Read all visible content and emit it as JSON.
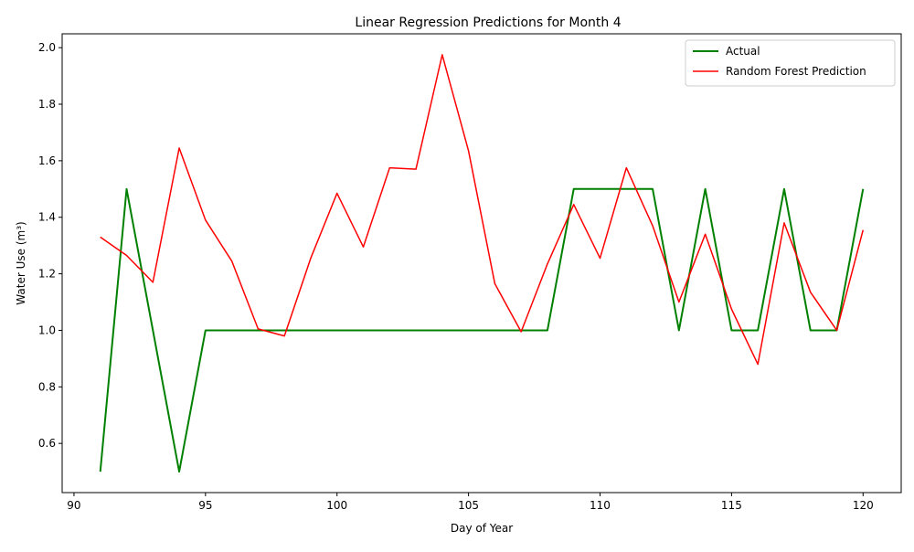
{
  "chart_data": {
    "type": "line",
    "title": "Linear Regression Predictions for Month 4",
    "xlabel": "Day of Year",
    "ylabel": "Water Use (m³)",
    "xlim": [
      89.55,
      121.45
    ],
    "ylim": [
      0.426,
      2.049
    ],
    "x_ticks": [
      90,
      95,
      100,
      105,
      110,
      115,
      120
    ],
    "y_ticks": [
      0.6,
      0.8,
      1.0,
      1.2,
      1.4,
      1.6,
      1.8,
      2.0
    ],
    "x_tick_labels": [
      "90",
      "95",
      "100",
      "105",
      "110",
      "115",
      "120"
    ],
    "y_tick_labels": [
      "0.6",
      "0.8",
      "1.0",
      "1.2",
      "1.4",
      "1.6",
      "1.8",
      "2.0"
    ],
    "legend_position": "top-right",
    "x": [
      91,
      92,
      93,
      94,
      95,
      96,
      97,
      98,
      99,
      100,
      101,
      102,
      103,
      104,
      105,
      106,
      107,
      108,
      109,
      110,
      111,
      112,
      113,
      114,
      115,
      116,
      117,
      118,
      119,
      120
    ],
    "series": [
      {
        "name": "Actual",
        "color": "#008000",
        "values": [
          0.5,
          1.5,
          1.0,
          0.5,
          1.0,
          1.0,
          1.0,
          1.0,
          1.0,
          1.0,
          1.0,
          1.0,
          1.0,
          1.0,
          1.0,
          1.0,
          1.0,
          1.0,
          1.5,
          1.5,
          1.5,
          1.5,
          1.0,
          1.5,
          1.0,
          1.0,
          1.5,
          1.0,
          1.0,
          1.5
        ]
      },
      {
        "name": "Random Forest Prediction",
        "color": "#ff0000",
        "values": [
          1.33,
          1.265,
          1.17,
          1.645,
          1.39,
          1.245,
          1.005,
          0.98,
          1.255,
          1.485,
          1.295,
          1.575,
          1.57,
          1.975,
          1.635,
          1.165,
          0.995,
          1.235,
          1.445,
          1.255,
          1.575,
          1.37,
          1.1,
          1.34,
          1.075,
          0.88,
          1.38,
          1.135,
          1.0,
          1.355
        ]
      }
    ]
  }
}
